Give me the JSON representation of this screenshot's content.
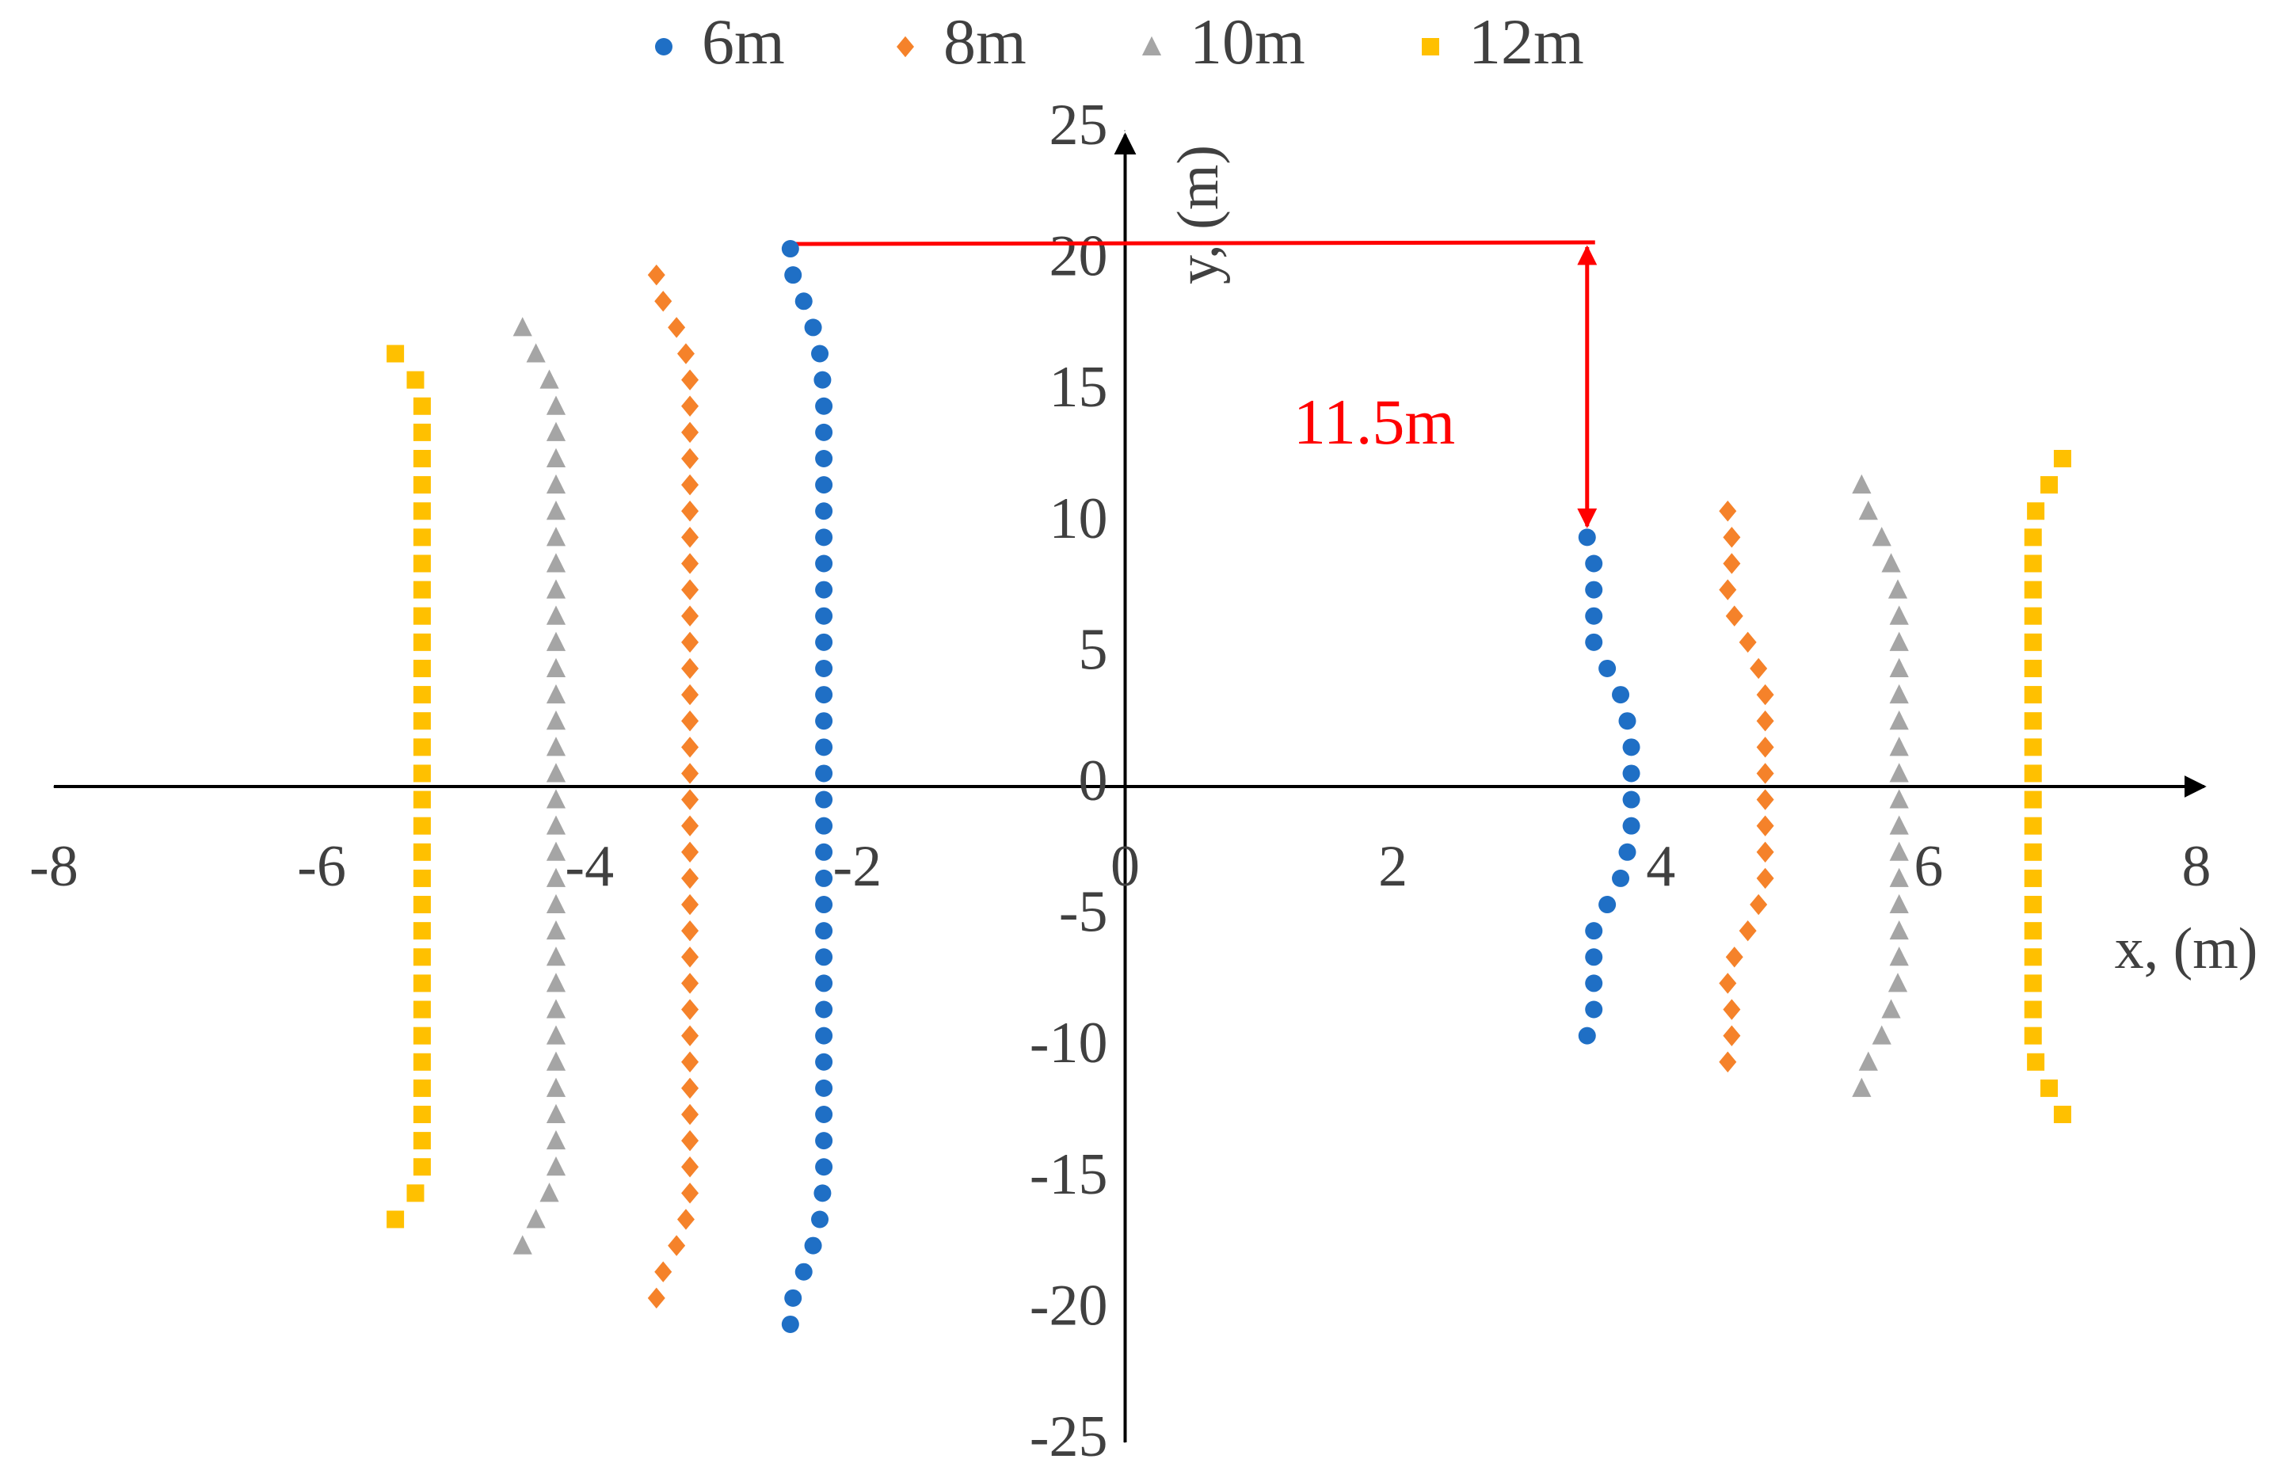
{
  "chart_data": {
    "type": "scatter",
    "xlabel": "x, (m)",
    "ylabel": "y, (m)",
    "xlim": [
      -8,
      8
    ],
    "xticks": [
      -8,
      -6,
      -4,
      -2,
      0,
      2,
      4,
      6,
      8
    ],
    "ylim": [
      -25,
      25
    ],
    "yticks": [
      -25,
      -20,
      -15,
      -10,
      -5,
      0,
      5,
      10,
      15,
      20,
      25
    ],
    "annotation": "11.5m",
    "series": [
      {
        "name": "6m",
        "color": "#1f6fc5",
        "marker": "circle",
        "x": [
          -2.5,
          -2.48,
          -2.4,
          -2.33,
          -2.28,
          -2.26,
          -2.25,
          -2.25,
          -2.25,
          -2.25,
          -2.25,
          -2.25,
          -2.25,
          -2.25,
          -2.25,
          -2.25,
          -2.25,
          -2.25,
          -2.25,
          -2.25,
          -2.25,
          -2.25,
          -2.25,
          -2.25,
          -2.25,
          -2.25,
          -2.25,
          -2.25,
          -2.25,
          -2.25,
          -2.25,
          -2.25,
          -2.25,
          -2.25,
          -2.25,
          -2.25,
          -2.26,
          -2.28,
          -2.33,
          -2.4,
          -2.48,
          -2.5,
          3.45,
          3.5,
          3.5,
          3.5,
          3.5,
          3.6,
          3.7,
          3.75,
          3.78,
          3.78,
          3.78,
          3.78,
          3.75,
          3.7,
          3.6,
          3.5,
          3.5,
          3.5,
          3.5,
          3.45
        ],
        "y": [
          20.5,
          19.5,
          18.5,
          17.5,
          16.5,
          15.5,
          14.5,
          13.5,
          12.5,
          11.5,
          10.5,
          9.5,
          8.5,
          7.5,
          6.5,
          5.5,
          4.5,
          3.5,
          2.5,
          1.5,
          0.5,
          -0.5,
          -1.5,
          -2.5,
          -3.5,
          -4.5,
          -5.5,
          -6.5,
          -7.5,
          -8.5,
          -9.5,
          -10.5,
          -11.5,
          -12.5,
          -13.5,
          -14.5,
          -15.5,
          -16.5,
          -17.5,
          -18.5,
          -19.5,
          -20.5,
          9.5,
          8.5,
          7.5,
          6.5,
          5.5,
          4.5,
          3.5,
          2.5,
          1.5,
          0.5,
          -0.5,
          -1.5,
          -2.5,
          -3.5,
          -4.5,
          -5.5,
          -6.5,
          -7.5,
          -8.5,
          -9.5
        ]
      },
      {
        "name": "8m",
        "color": "#f5822a",
        "marker": "diamond",
        "x": [
          -3.5,
          -3.45,
          -3.35,
          -3.28,
          -3.25,
          -3.25,
          -3.25,
          -3.25,
          -3.25,
          -3.25,
          -3.25,
          -3.25,
          -3.25,
          -3.25,
          -3.25,
          -3.25,
          -3.25,
          -3.25,
          -3.25,
          -3.25,
          -3.25,
          -3.25,
          -3.25,
          -3.25,
          -3.25,
          -3.25,
          -3.25,
          -3.25,
          -3.25,
          -3.25,
          -3.25,
          -3.25,
          -3.25,
          -3.25,
          -3.25,
          -3.25,
          -3.28,
          -3.35,
          -3.45,
          -3.5,
          4.5,
          4.53,
          4.53,
          4.5,
          4.55,
          4.65,
          4.73,
          4.78,
          4.78,
          4.78,
          4.78,
          4.78,
          4.78,
          4.78,
          4.78,
          4.73,
          4.65,
          4.55,
          4.5,
          4.53,
          4.53,
          4.5
        ],
        "y": [
          19.5,
          18.5,
          17.5,
          16.5,
          15.5,
          14.5,
          13.5,
          12.5,
          11.5,
          10.5,
          9.5,
          8.5,
          7.5,
          6.5,
          5.5,
          4.5,
          3.5,
          2.5,
          1.5,
          0.5,
          -0.5,
          -1.5,
          -2.5,
          -3.5,
          -4.5,
          -5.5,
          -6.5,
          -7.5,
          -8.5,
          -9.5,
          -10.5,
          -11.5,
          -12.5,
          -13.5,
          -14.5,
          -15.5,
          -16.5,
          -17.5,
          -18.5,
          -19.5,
          10.5,
          9.5,
          8.5,
          7.5,
          6.5,
          5.5,
          4.5,
          3.5,
          2.5,
          1.5,
          0.5,
          -0.5,
          -1.5,
          -2.5,
          -3.5,
          -4.5,
          -5.5,
          -6.5,
          -7.5,
          -8.5,
          -9.5,
          -10.5
        ]
      },
      {
        "name": "10m",
        "color": "#a5a5a5",
        "marker": "triangle",
        "x": [
          -4.5,
          -4.4,
          -4.3,
          -4.25,
          -4.25,
          -4.25,
          -4.25,
          -4.25,
          -4.25,
          -4.25,
          -4.25,
          -4.25,
          -4.25,
          -4.25,
          -4.25,
          -4.25,
          -4.25,
          -4.25,
          -4.25,
          -4.25,
          -4.25,
          -4.25,
          -4.25,
          -4.25,
          -4.25,
          -4.25,
          -4.25,
          -4.25,
          -4.25,
          -4.25,
          -4.25,
          -4.25,
          -4.25,
          -4.3,
          -4.4,
          -4.5,
          5.5,
          5.55,
          5.65,
          5.72,
          5.77,
          5.78,
          5.78,
          5.78,
          5.78,
          5.78,
          5.78,
          5.78,
          5.78,
          5.78,
          5.78,
          5.78,
          5.78,
          5.78,
          5.78,
          5.77,
          5.72,
          5.65,
          5.55,
          5.5
        ],
        "y": [
          17.5,
          16.5,
          15.5,
          14.5,
          13.5,
          12.5,
          11.5,
          10.5,
          9.5,
          8.5,
          7.5,
          6.5,
          5.5,
          4.5,
          3.5,
          2.5,
          1.5,
          0.5,
          -0.5,
          -1.5,
          -2.5,
          -3.5,
          -4.5,
          -5.5,
          -6.5,
          -7.5,
          -8.5,
          -9.5,
          -10.5,
          -11.5,
          -12.5,
          -13.5,
          -14.5,
          -15.5,
          -16.5,
          -17.5,
          11.5,
          10.5,
          9.5,
          8.5,
          7.5,
          6.5,
          5.5,
          4.5,
          3.5,
          2.5,
          1.5,
          0.5,
          -0.5,
          -1.5,
          -2.5,
          -3.5,
          -4.5,
          -5.5,
          -6.5,
          -7.5,
          -8.5,
          -9.5,
          -10.5,
          -11.5
        ]
      },
      {
        "name": "12m",
        "color": "#ffc000",
        "marker": "square",
        "x": [
          -5.45,
          -5.3,
          -5.25,
          -5.25,
          -5.25,
          -5.25,
          -5.25,
          -5.25,
          -5.25,
          -5.25,
          -5.25,
          -5.25,
          -5.25,
          -5.25,
          -5.25,
          -5.25,
          -5.25,
          -5.25,
          -5.25,
          -5.25,
          -5.25,
          -5.25,
          -5.25,
          -5.25,
          -5.25,
          -5.25,
          -5.25,
          -5.25,
          -5.25,
          -5.25,
          -5.25,
          -5.25,
          -5.3,
          -5.45,
          7.0,
          6.9,
          6.8,
          6.78,
          6.78,
          6.78,
          6.78,
          6.78,
          6.78,
          6.78,
          6.78,
          6.78,
          6.78,
          6.78,
          6.78,
          6.78,
          6.78,
          6.78,
          6.78,
          6.78,
          6.78,
          6.78,
          6.78,
          6.8,
          6.9,
          7.0
        ],
        "y": [
          16.5,
          15.5,
          14.5,
          13.5,
          12.5,
          11.5,
          10.5,
          9.5,
          8.5,
          7.5,
          6.5,
          5.5,
          4.5,
          3.5,
          2.5,
          1.5,
          0.5,
          -0.5,
          -1.5,
          -2.5,
          -3.5,
          -4.5,
          -5.5,
          -6.5,
          -7.5,
          -8.5,
          -9.5,
          -10.5,
          -11.5,
          -12.5,
          -13.5,
          -14.5,
          -15.5,
          -16.5,
          12.5,
          11.5,
          10.5,
          9.5,
          8.5,
          7.5,
          6.5,
          5.5,
          4.5,
          3.5,
          2.5,
          1.5,
          0.5,
          -0.5,
          -1.5,
          -2.5,
          -3.5,
          -4.5,
          -5.5,
          -6.5,
          -7.5,
          -8.5,
          -9.5,
          -10.5,
          -11.5,
          -12.5
        ]
      }
    ]
  }
}
